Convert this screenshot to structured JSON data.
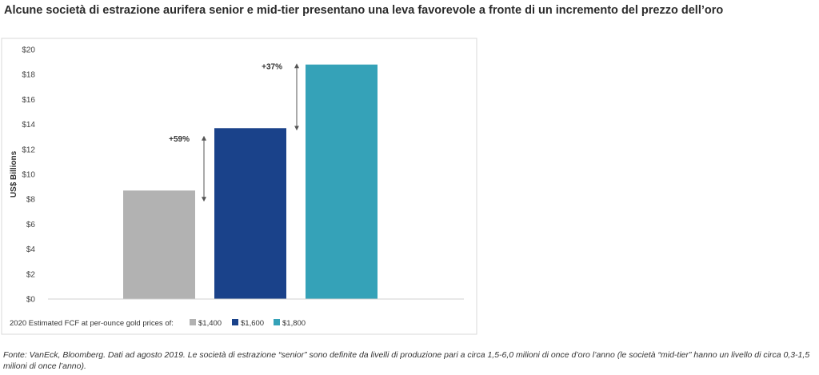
{
  "title": "Alcune società di estrazione aurifera senior e mid-tier presentano una leva favorevole a fronte di un incremento del prezzo dell’oro",
  "footnote": "Fonte: VanEck, Bloomberg. Dati ad agosto 2019. Le società di estrazione “senior” sono definite da livelli di produzione pari a circa 1,5-6,0 milioni di once d’oro l’anno (le società “mid-tier” hanno un livello di circa 0,3-1,5 milioni di once l’anno).",
  "chart_data": {
    "type": "bar",
    "categories": [
      "$1,400",
      "$1,600",
      "$1,800"
    ],
    "values": [
      8.7,
      13.7,
      18.8
    ],
    "colors": [
      "#b2b2b2",
      "#1a428a",
      "#35a2b8"
    ],
    "ylabel": "US$ Billions",
    "ylim": [
      0,
      20
    ],
    "yticks": [
      "$0",
      "$2",
      "$4",
      "$6",
      "$8",
      "$10",
      "$12",
      "$14",
      "$16",
      "$18",
      "$20"
    ],
    "legend_title": "2020 Estimated FCF at per-ounce gold prices of:",
    "legend": [
      "$1,400",
      "$1,600",
      "$1,800"
    ],
    "legend_placement": "bottom",
    "grid": false,
    "annotations": [
      {
        "label": "+59%",
        "from_value": 8.0,
        "to_value": 12.9
      },
      {
        "label": "+37%",
        "from_value": 13.7,
        "to_value": 18.7
      }
    ]
  }
}
